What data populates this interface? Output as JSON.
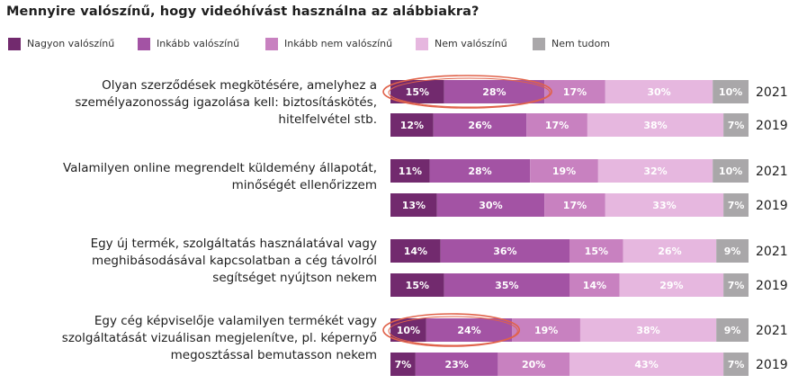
{
  "chart_data": {
    "type": "bar",
    "orientation": "horizontal",
    "stacked": true,
    "title": "Mennyire valószínű, hogy videóhívást használna az alábbiakra?",
    "legend_position": "top-left",
    "series": [
      {
        "name": "Nagyon valószínű",
        "color": "#722a6e"
      },
      {
        "name": "Inkább valószínű",
        "color": "#a353a4"
      },
      {
        "name": "Inkább nem valószínű",
        "color": "#c881c0"
      },
      {
        "name": "Nem valószínű",
        "color": "#e6b7df"
      },
      {
        "name": "Nem tudom",
        "color": "#a9a7a9"
      }
    ],
    "groups": [
      {
        "label_lines": [
          "Olyan szerződések megkötésére, amelyhez a",
          "személyazonosság igazolása kell: biztosításkötés,",
          "hitelfelvétel stb."
        ],
        "bars": [
          {
            "year": "2021",
            "values": [
              15,
              28,
              17,
              30,
              10
            ],
            "labels": [
              "15%",
              "28%",
              "17%",
              "30%",
              "10%"
            ],
            "highlight": true
          },
          {
            "year": "2019",
            "values": [
              12,
              26,
              17,
              38,
              7
            ],
            "labels": [
              "12%",
              "26%",
              "17%",
              "38%",
              "7%"
            ]
          }
        ]
      },
      {
        "label_lines": [
          "Valamilyen online megrendelt küldemény állapotát,",
          "minőségét ellenőrizzem"
        ],
        "bars": [
          {
            "year": "2021",
            "values": [
              11,
              28,
              19,
              32,
              10
            ],
            "labels": [
              "11%",
              "28%",
              "19%",
              "32%",
              "10%"
            ]
          },
          {
            "year": "2019",
            "values": [
              13,
              30,
              17,
              33,
              7
            ],
            "labels": [
              "13%",
              "30%",
              "17%",
              "33%",
              "7%"
            ]
          }
        ]
      },
      {
        "label_lines": [
          "Egy új termék, szolgáltatás használatával vagy",
          "meghibásodásával kapcsolatban a cég távolról",
          "segítséget nyújtson nekem"
        ],
        "bars": [
          {
            "year": "2021",
            "values": [
              14,
              36,
              15,
              26,
              9
            ],
            "labels": [
              "14%",
              "36%",
              "15%",
              "26%",
              "9%"
            ]
          },
          {
            "year": "2019",
            "values": [
              15,
              35,
              14,
              29,
              7
            ],
            "labels": [
              "15%",
              "35%",
              "14%",
              "29%",
              "7%"
            ]
          }
        ]
      },
      {
        "label_lines": [
          "Egy cég képviselője valamilyen termékét vagy",
          "szolgáltatását vizuálisan megjelenítve, pl. képernyő",
          "megosztással bemutasson nekem"
        ],
        "bars": [
          {
            "year": "2021",
            "values": [
              10,
              24,
              19,
              38,
              9
            ],
            "labels": [
              "10%",
              "24%",
              "19%",
              "38%",
              "9%"
            ],
            "highlight": true
          },
          {
            "year": "2019",
            "values": [
              7,
              23,
              20,
              43,
              7
            ],
            "labels": [
              "7%",
              "23%",
              "20%",
              "43%",
              "7%"
            ]
          }
        ]
      }
    ],
    "highlight_color": "#e0624a"
  }
}
